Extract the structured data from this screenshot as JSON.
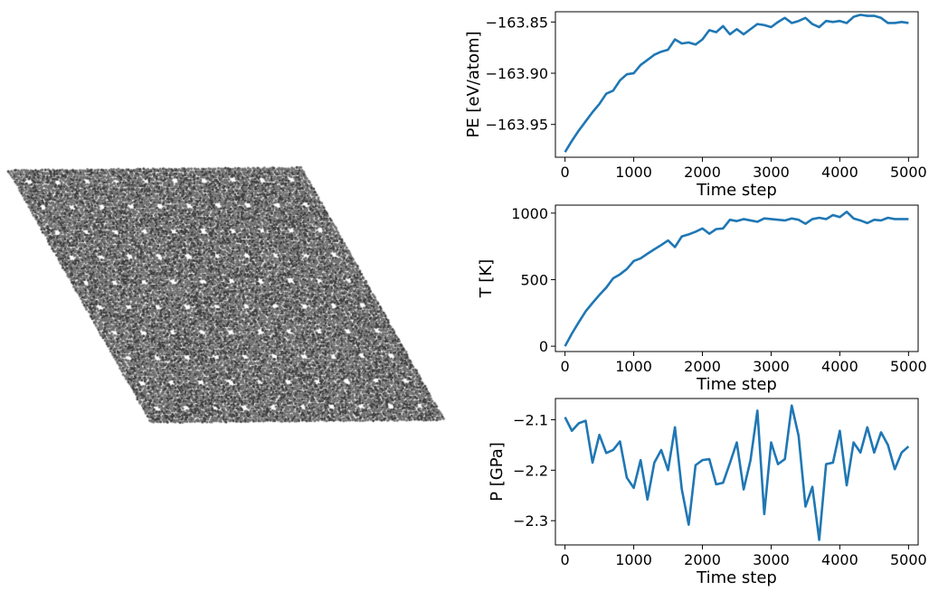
{
  "colors": {
    "line": "#1f77b4",
    "lattice_fill": "#6e6e6e",
    "lattice_dark": "#3c3c3c",
    "axis": "#000000"
  },
  "chart_data": [
    {
      "type": "line",
      "title": "",
      "xlabel": "Time step",
      "ylabel": "PE [eV/atom]",
      "xlim": [
        -140,
        5140
      ],
      "ylim": [
        -163.982,
        -163.84
      ],
      "xticks": [
        0,
        1000,
        2000,
        3000,
        4000,
        5000
      ],
      "xtick_labels": [
        "0",
        "1000",
        "2000",
        "3000",
        "4000",
        "5000"
      ],
      "yticks": [
        -163.95,
        -163.9,
        -163.85
      ],
      "ytick_labels": [
        "−163.95",
        "−163.90",
        "−163.85"
      ],
      "series": [
        {
          "name": "PE",
          "x": [
            0,
            100,
            200,
            300,
            400,
            500,
            600,
            700,
            800,
            900,
            1000,
            1100,
            1200,
            1300,
            1400,
            1500,
            1600,
            1700,
            1800,
            1900,
            2000,
            2100,
            2200,
            2300,
            2400,
            2500,
            2600,
            2700,
            2800,
            2900,
            3000,
            3100,
            3200,
            3300,
            3400,
            3500,
            3600,
            3700,
            3800,
            3900,
            4000,
            4100,
            4200,
            4300,
            4400,
            4500,
            4600,
            4700,
            4800,
            4900,
            5000
          ],
          "y": [
            -163.977,
            -163.966,
            -163.956,
            -163.947,
            -163.938,
            -163.93,
            -163.92,
            -163.917,
            -163.907,
            -163.901,
            -163.9,
            -163.892,
            -163.887,
            -163.882,
            -163.879,
            -163.877,
            -163.867,
            -163.871,
            -163.87,
            -163.872,
            -163.867,
            -163.858,
            -163.86,
            -163.854,
            -163.862,
            -163.857,
            -163.862,
            -163.857,
            -163.852,
            -163.853,
            -163.855,
            -163.85,
            -163.846,
            -163.851,
            -163.849,
            -163.846,
            -163.852,
            -163.855,
            -163.849,
            -163.85,
            -163.849,
            -163.851,
            -163.845,
            -163.843,
            -163.844,
            -163.844,
            -163.846,
            -163.851,
            -163.851,
            -163.85,
            -163.851
          ]
        }
      ]
    },
    {
      "type": "line",
      "title": "",
      "xlabel": "Time step",
      "ylabel": "T [K]",
      "xlim": [
        -140,
        5140
      ],
      "ylim": [
        -40,
        1060
      ],
      "xticks": [
        0,
        1000,
        2000,
        3000,
        4000,
        5000
      ],
      "xtick_labels": [
        "0",
        "1000",
        "2000",
        "3000",
        "4000",
        "5000"
      ],
      "yticks": [
        0,
        500,
        1000
      ],
      "ytick_labels": [
        "0",
        "500",
        "1000"
      ],
      "series": [
        {
          "name": "T",
          "x": [
            0,
            100,
            200,
            300,
            400,
            500,
            600,
            700,
            800,
            900,
            1000,
            1100,
            1200,
            1300,
            1400,
            1500,
            1600,
            1700,
            1800,
            1900,
            2000,
            2100,
            2200,
            2300,
            2400,
            2500,
            2600,
            2700,
            2800,
            2900,
            3000,
            3100,
            3200,
            3300,
            3400,
            3500,
            3600,
            3700,
            3800,
            3900,
            4000,
            4100,
            4200,
            4300,
            4400,
            4500,
            4600,
            4700,
            4800,
            4900,
            5000
          ],
          "y": [
            0,
            95,
            180,
            262,
            325,
            385,
            440,
            510,
            540,
            580,
            640,
            660,
            695,
            728,
            760,
            795,
            745,
            825,
            840,
            860,
            885,
            845,
            880,
            885,
            950,
            940,
            955,
            945,
            935,
            960,
            955,
            950,
            945,
            960,
            950,
            920,
            955,
            965,
            955,
            985,
            970,
            1010,
            960,
            945,
            925,
            950,
            945,
            965,
            955,
            955,
            955
          ]
        }
      ]
    },
    {
      "type": "line",
      "title": "",
      "xlabel": "Time step",
      "ylabel": "P [GPa]",
      "xlim": [
        -140,
        5140
      ],
      "ylim": [
        -2.348,
        -2.058
      ],
      "xticks": [
        0,
        1000,
        2000,
        3000,
        4000,
        5000
      ],
      "xtick_labels": [
        "0",
        "1000",
        "2000",
        "3000",
        "4000",
        "5000"
      ],
      "yticks": [
        -2.3,
        -2.2,
        -2.1
      ],
      "ytick_labels": [
        "−2.3",
        "−2.2",
        "−2.1"
      ],
      "series": [
        {
          "name": "P",
          "x": [
            0,
            100,
            200,
            300,
            400,
            500,
            600,
            700,
            800,
            900,
            1000,
            1100,
            1200,
            1300,
            1400,
            1500,
            1600,
            1700,
            1800,
            1900,
            2000,
            2100,
            2200,
            2300,
            2400,
            2500,
            2600,
            2700,
            2800,
            2900,
            3000,
            3100,
            3200,
            3300,
            3400,
            3500,
            3600,
            3700,
            3800,
            3900,
            4000,
            4100,
            4200,
            4300,
            4400,
            4500,
            4600,
            4700,
            4800,
            4900,
            5000
          ],
          "y": [
            -2.095,
            -2.122,
            -2.107,
            -2.102,
            -2.185,
            -2.13,
            -2.166,
            -2.16,
            -2.143,
            -2.215,
            -2.235,
            -2.18,
            -2.258,
            -2.185,
            -2.16,
            -2.2,
            -2.115,
            -2.238,
            -2.308,
            -2.19,
            -2.18,
            -2.178,
            -2.228,
            -2.225,
            -2.186,
            -2.145,
            -2.238,
            -2.18,
            -2.082,
            -2.287,
            -2.145,
            -2.188,
            -2.178,
            -2.072,
            -2.132,
            -2.272,
            -2.233,
            -2.338,
            -2.188,
            -2.185,
            -2.122,
            -2.23,
            -2.145,
            -2.165,
            -2.115,
            -2.165,
            -2.125,
            -2.15,
            -2.198,
            -2.165,
            -2.153
          ]
        }
      ]
    }
  ]
}
